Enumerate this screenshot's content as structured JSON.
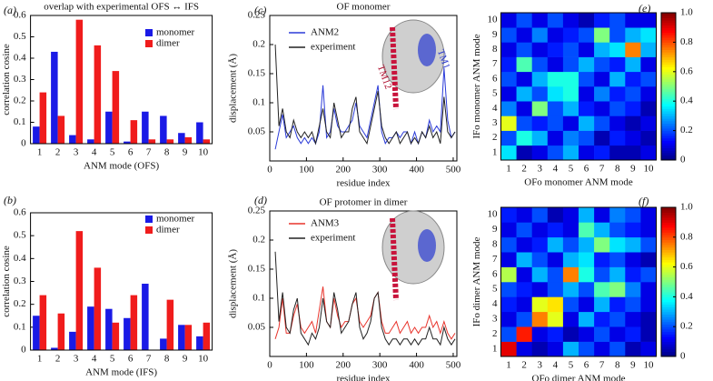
{
  "chart_data": [
    {
      "type": "bar",
      "panel_label": "(a)",
      "title": "overlap with experimental OFS ↔ IFS",
      "xlabel": "ANM mode (OFS)",
      "ylabel": "correlation cosine",
      "categories": [
        "1",
        "2",
        "3",
        "4",
        "5",
        "6",
        "7",
        "8",
        "9",
        "10"
      ],
      "series": [
        {
          "name": "monomer",
          "color": "#1a1ae6",
          "values": [
            0.08,
            0.43,
            0.04,
            0.02,
            0.15,
            0.01,
            0.15,
            0.13,
            0.05,
            0.1
          ]
        },
        {
          "name": "dimer",
          "color": "#f01c1c",
          "values": [
            0.24,
            0.13,
            0.58,
            0.46,
            0.34,
            0.11,
            0.02,
            0.02,
            0.03,
            0.02
          ]
        }
      ],
      "ylim": [
        0,
        0.6
      ],
      "yticks": [
        0,
        0.1,
        0.2,
        0.3,
        0.4,
        0.5,
        0.6
      ],
      "legend": "upper right"
    },
    {
      "type": "bar",
      "panel_label": "(b)",
      "xlabel": "ANM mode (IFS)",
      "ylabel": "correlation cosine",
      "categories": [
        "1",
        "2",
        "3",
        "4",
        "5",
        "6",
        "7",
        "8",
        "9",
        "10"
      ],
      "series": [
        {
          "name": "monomer",
          "color": "#1a1ae6",
          "values": [
            0.15,
            0.01,
            0.08,
            0.19,
            0.18,
            0.14,
            0.29,
            0.05,
            0.11,
            0.06
          ]
        },
        {
          "name": "dimer",
          "color": "#f01c1c",
          "values": [
            0.24,
            0.16,
            0.52,
            0.36,
            0.12,
            0.24,
            0.0,
            0.22,
            0.11,
            0.12
          ]
        }
      ],
      "ylim": [
        0,
        0.6
      ],
      "yticks": [
        0,
        0.1,
        0.2,
        0.3,
        0.4,
        0.5,
        0.6
      ],
      "legend": "upper right"
    },
    {
      "type": "line",
      "panel_label": "(c)",
      "title": "OF monomer",
      "xlabel": "residue index",
      "ylabel": "displacement (Å)",
      "annotations": [
        "TM12",
        "TM1"
      ],
      "x": [
        15,
        25,
        35,
        45,
        55,
        65,
        75,
        85,
        95,
        105,
        115,
        125,
        135,
        145,
        155,
        165,
        175,
        185,
        195,
        205,
        215,
        225,
        235,
        245,
        255,
        265,
        275,
        285,
        295,
        305,
        315,
        325,
        335,
        345,
        355,
        365,
        375,
        385,
        395,
        405,
        415,
        425,
        435,
        445,
        455,
        465,
        475,
        485,
        495,
        505
      ],
      "series": [
        {
          "name": "ANM2",
          "color": "#2b3bd8",
          "values": [
            0.02,
            0.05,
            0.08,
            0.04,
            0.05,
            0.06,
            0.04,
            0.03,
            0.04,
            0.03,
            0.04,
            0.03,
            0.05,
            0.13,
            0.04,
            0.05,
            0.09,
            0.06,
            0.05,
            0.05,
            0.06,
            0.07,
            0.1,
            0.06,
            0.05,
            0.04,
            0.07,
            0.1,
            0.13,
            0.05,
            0.03,
            0.04,
            0.04,
            0.05,
            0.04,
            0.05,
            0.05,
            0.03,
            0.05,
            0.03,
            0.05,
            0.04,
            0.07,
            0.05,
            0.06,
            0.05,
            0.16,
            0.07,
            0.04,
            0.05
          ]
        },
        {
          "name": "experiment",
          "color": "#222222",
          "values": [
            0.2,
            0.06,
            0.09,
            0.05,
            0.04,
            0.07,
            0.05,
            0.04,
            0.05,
            0.04,
            0.05,
            0.03,
            0.06,
            0.09,
            0.05,
            0.04,
            0.1,
            0.07,
            0.04,
            0.05,
            0.05,
            0.09,
            0.11,
            0.05,
            0.04,
            0.03,
            0.06,
            0.09,
            0.12,
            0.06,
            0.04,
            0.03,
            0.04,
            0.05,
            0.03,
            0.04,
            0.05,
            0.03,
            0.04,
            0.03,
            0.05,
            0.04,
            0.06,
            0.04,
            0.05,
            0.03,
            0.11,
            0.05,
            0.04,
            0.05
          ]
        }
      ],
      "xlim": [
        0,
        510
      ],
      "xticks": [
        0,
        100,
        200,
        300,
        400,
        500
      ],
      "ylim": [
        0,
        0.25
      ],
      "yticks": [
        0.05,
        0.1,
        0.15,
        0.2,
        0.25
      ],
      "legend": "upper left"
    },
    {
      "type": "line",
      "panel_label": "(d)",
      "title": "OF protomer in dimer",
      "xlabel": "residue index",
      "ylabel": "displacement (Å)",
      "x": [
        15,
        25,
        35,
        45,
        55,
        65,
        75,
        85,
        95,
        105,
        115,
        125,
        135,
        145,
        155,
        165,
        175,
        185,
        195,
        205,
        215,
        225,
        235,
        245,
        255,
        265,
        275,
        285,
        295,
        305,
        315,
        325,
        335,
        345,
        355,
        365,
        375,
        385,
        395,
        405,
        415,
        425,
        435,
        445,
        455,
        465,
        475,
        485,
        495,
        505
      ],
      "series": [
        {
          "name": "ANM3",
          "color": "#e8342c",
          "values": [
            0.03,
            0.05,
            0.1,
            0.04,
            0.04,
            0.07,
            0.09,
            0.05,
            0.04,
            0.05,
            0.06,
            0.04,
            0.08,
            0.12,
            0.06,
            0.05,
            0.1,
            0.07,
            0.05,
            0.06,
            0.06,
            0.09,
            0.1,
            0.06,
            0.05,
            0.06,
            0.07,
            0.1,
            0.11,
            0.06,
            0.04,
            0.04,
            0.05,
            0.06,
            0.04,
            0.05,
            0.06,
            0.04,
            0.05,
            0.04,
            0.05,
            0.05,
            0.07,
            0.05,
            0.06,
            0.04,
            0.06,
            0.04,
            0.03,
            0.04
          ]
        },
        {
          "name": "experiment",
          "color": "#222222",
          "values": [
            0.18,
            0.06,
            0.11,
            0.05,
            0.04,
            0.08,
            0.1,
            0.04,
            0.03,
            0.02,
            0.04,
            0.03,
            0.05,
            0.1,
            0.06,
            0.05,
            0.11,
            0.08,
            0.04,
            0.05,
            0.06,
            0.09,
            0.11,
            0.05,
            0.03,
            0.04,
            0.06,
            0.1,
            0.11,
            0.05,
            0.03,
            0.02,
            0.03,
            0.03,
            0.02,
            0.03,
            0.03,
            0.02,
            0.03,
            0.02,
            0.03,
            0.03,
            0.05,
            0.03,
            0.03,
            0.02,
            0.05,
            0.03,
            0.02,
            0.03
          ]
        }
      ],
      "xlim": [
        0,
        510
      ],
      "xticks": [
        0,
        100,
        200,
        300,
        400,
        500
      ],
      "ylim": [
        0,
        0.25
      ],
      "yticks": [
        0.05,
        0.1,
        0.15,
        0.2,
        0.25
      ],
      "legend": "upper left"
    },
    {
      "type": "heatmap",
      "panel_label": "(e)",
      "xlabel": "OFo monomer ANM mode",
      "ylabel": "IFo monomer ANM mode",
      "colormap": "jet",
      "x_categories": [
        "1",
        "2",
        "3",
        "4",
        "5",
        "6",
        "7",
        "8",
        "9",
        "10"
      ],
      "y_categories": [
        "1",
        "2",
        "3",
        "4",
        "5",
        "6",
        "7",
        "8",
        "9",
        "10"
      ],
      "z": [
        [
          0.35,
          0.05,
          0.1,
          0.2,
          0.3,
          0.1,
          0.15,
          0.05,
          0.05,
          0.1
        ],
        [
          0.2,
          0.4,
          0.3,
          0.1,
          0.25,
          0.2,
          0.05,
          0.15,
          0.1,
          0.05
        ],
        [
          0.6,
          0.2,
          0.15,
          0.2,
          0.1,
          0.3,
          0.2,
          0.1,
          0.05,
          0.1
        ],
        [
          0.25,
          0.1,
          0.5,
          0.2,
          0.3,
          0.15,
          0.1,
          0.2,
          0.15,
          0.05
        ],
        [
          0.1,
          0.3,
          0.2,
          0.35,
          0.4,
          0.1,
          0.25,
          0.15,
          0.2,
          0.1
        ],
        [
          0.2,
          0.1,
          0.3,
          0.4,
          0.4,
          0.2,
          0.1,
          0.3,
          0.15,
          0.2
        ],
        [
          0.15,
          0.45,
          0.2,
          0.1,
          0.2,
          0.3,
          0.2,
          0.15,
          0.3,
          0.1
        ],
        [
          0.1,
          0.2,
          0.1,
          0.15,
          0.2,
          0.1,
          0.3,
          0.35,
          0.75,
          0.3
        ],
        [
          0.2,
          0.1,
          0.25,
          0.1,
          0.15,
          0.2,
          0.5,
          0.2,
          0.3,
          0.35
        ],
        [
          0.1,
          0.2,
          0.1,
          0.2,
          0.1,
          0.05,
          0.15,
          0.2,
          0.1,
          0.1
        ]
      ],
      "clim": [
        0,
        1
      ],
      "cticks": [
        0,
        0.2,
        0.4,
        0.6,
        0.8,
        {
          "value": 1,
          "label": "1.0"
        }
      ]
    },
    {
      "type": "heatmap",
      "panel_label": "(f)",
      "xlabel": "OFo dimer ANM mode",
      "ylabel": "IFo dimer ANM mode",
      "colormap": "jet",
      "x_categories": [
        "1",
        "2",
        "3",
        "4",
        "5",
        "6",
        "7",
        "8",
        "9",
        "10"
      ],
      "y_categories": [
        "1",
        "2",
        "3",
        "4",
        "5",
        "6",
        "7",
        "8",
        "9",
        "10"
      ],
      "z": [
        [
          0.9,
          0.1,
          0.05,
          0.1,
          0.3,
          0.2,
          0.1,
          0.2,
          0.05,
          0.1
        ],
        [
          0.2,
          0.85,
          0.1,
          0.15,
          0.05,
          0.1,
          0.2,
          0.1,
          0.15,
          0.05
        ],
        [
          0.1,
          0.2,
          0.75,
          0.6,
          0.1,
          0.3,
          0.15,
          0.2,
          0.1,
          0.05
        ],
        [
          0.15,
          0.1,
          0.6,
          0.65,
          0.2,
          0.1,
          0.3,
          0.15,
          0.2,
          0.1
        ],
        [
          0.2,
          0.15,
          0.1,
          0.2,
          0.3,
          0.2,
          0.45,
          0.5,
          0.25,
          0.1
        ],
        [
          0.55,
          0.1,
          0.3,
          0.2,
          0.75,
          0.4,
          0.2,
          0.3,
          0.15,
          0.2
        ],
        [
          0.1,
          0.3,
          0.2,
          0.1,
          0.3,
          0.35,
          0.15,
          0.2,
          0.1,
          0.05
        ],
        [
          0.2,
          0.1,
          0.15,
          0.3,
          0.2,
          0.3,
          0.5,
          0.35,
          0.3,
          0.2
        ],
        [
          0.1,
          0.2,
          0.1,
          0.15,
          0.1,
          0.45,
          0.3,
          0.2,
          0.15,
          0.1
        ],
        [
          0.15,
          0.1,
          0.2,
          0.05,
          0.1,
          0.3,
          0.1,
          0.25,
          0.2,
          0.1
        ]
      ],
      "clim": [
        0,
        1
      ],
      "cticks": [
        0,
        0.2,
        0.4,
        0.6,
        0.8,
        {
          "value": 1,
          "label": "1.0"
        }
      ]
    }
  ]
}
